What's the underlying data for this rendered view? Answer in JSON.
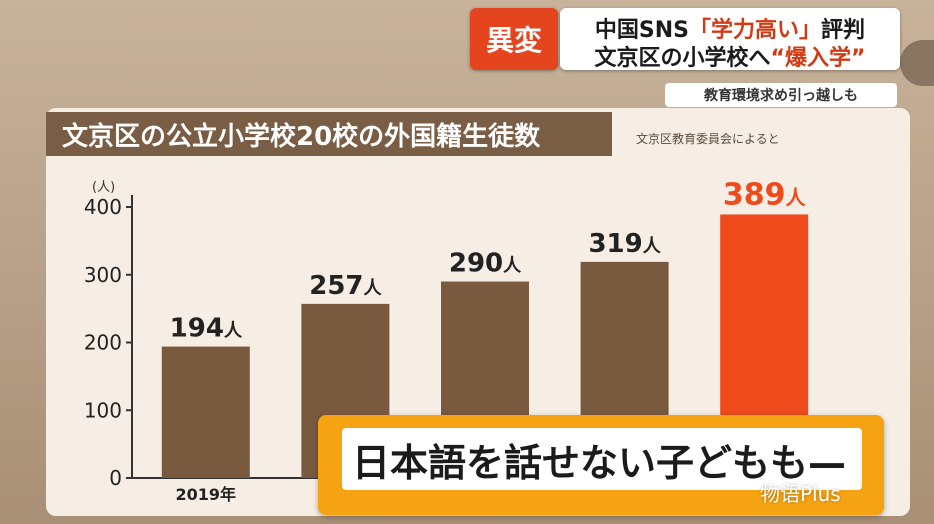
{
  "caption": {
    "tag": "異変",
    "line1_pre": "中国SNS",
    "line1_hl": "「学力高い」",
    "line1_post": "評判",
    "line2_pre": "文京区の小学校へ",
    "line2_hl": "“爆入学”",
    "sub": "教育環境求め引っ越しも"
  },
  "overlay": {
    "subtitle": "日本語を話せない子どもも—",
    "watermark": "物语Plus"
  },
  "colors": {
    "bar": "#7a5a3f",
    "bar_highlight": "#ee4a1b",
    "label_highlight": "#ee4a1b",
    "title_bg": "#7a5d45"
  },
  "chart_data": {
    "type": "bar",
    "title": "文京区の公立小学校20校の外国籍生徒数",
    "source": "文京区教育委員会によると",
    "ylabel": "(人)",
    "ylim": [
      0,
      400
    ],
    "yticks": [
      "0",
      "100",
      "200",
      "300",
      "400"
    ],
    "categories": [
      "2019年",
      "",
      "",
      "",
      ""
    ],
    "values": [
      194,
      257,
      290,
      319,
      389
    ],
    "value_labels": [
      "194",
      "257",
      "290",
      "319",
      "389"
    ],
    "value_unit": "人",
    "highlight_index": 4,
    "grid": false
  }
}
